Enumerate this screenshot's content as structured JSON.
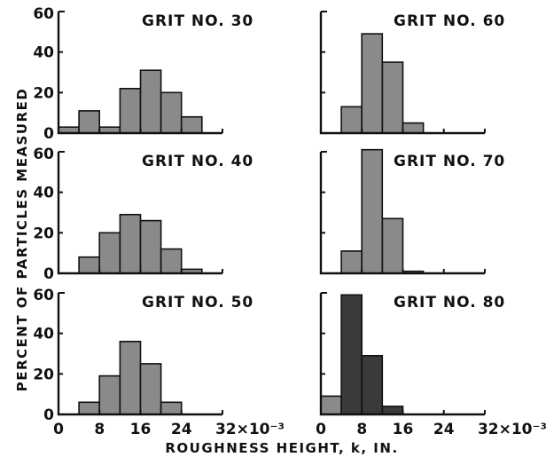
{
  "chart_data": {
    "type": "bar",
    "ylabel": "PERCENT OF PARTICLES MEASURED",
    "xlabel": "ROUGHNESS HEIGHT, k, IN.",
    "x_tick_labels": [
      "0",
      "8",
      "16",
      "24",
      "32×10⁻³"
    ],
    "y_tick_labels": [
      "0",
      "20",
      "40",
      "60"
    ],
    "xlim": [
      0,
      32
    ],
    "ylim": [
      0,
      60
    ],
    "bin_width": 4,
    "colors": {
      "bar_fill": "#8a8a8a",
      "bar_fill_dark": "#3a3a3a",
      "ink": "#111111"
    },
    "panels": [
      {
        "title": "GRIT NO. 30",
        "bins": [
          [
            0,
            4,
            3
          ],
          [
            4,
            8,
            11
          ],
          [
            8,
            12,
            3
          ],
          [
            12,
            16,
            22
          ],
          [
            16,
            20,
            31
          ],
          [
            20,
            24,
            20
          ],
          [
            24,
            28,
            8
          ]
        ]
      },
      {
        "title": "GRIT NO. 60",
        "bins": [
          [
            4,
            8,
            13
          ],
          [
            8,
            12,
            49
          ],
          [
            12,
            16,
            35
          ],
          [
            16,
            20,
            5
          ]
        ]
      },
      {
        "title": "GRIT NO. 40",
        "bins": [
          [
            4,
            8,
            8
          ],
          [
            8,
            12,
            20
          ],
          [
            12,
            16,
            29
          ],
          [
            16,
            20,
            26
          ],
          [
            20,
            24,
            12
          ],
          [
            24,
            28,
            2
          ]
        ]
      },
      {
        "title": "GRIT NO. 70",
        "bins": [
          [
            4,
            8,
            11
          ],
          [
            8,
            12,
            61
          ],
          [
            12,
            16,
            27
          ],
          [
            16,
            20,
            1
          ]
        ]
      },
      {
        "title": "GRIT NO. 50",
        "bins": [
          [
            4,
            8,
            6
          ],
          [
            8,
            12,
            19
          ],
          [
            12,
            16,
            36
          ],
          [
            16,
            20,
            25
          ],
          [
            20,
            24,
            6
          ]
        ]
      },
      {
        "title": "GRIT NO. 80",
        "bins": [
          [
            0,
            4,
            9
          ],
          [
            4,
            8,
            59
          ],
          [
            8,
            12,
            29
          ],
          [
            12,
            16,
            4
          ]
        ]
      }
    ]
  }
}
